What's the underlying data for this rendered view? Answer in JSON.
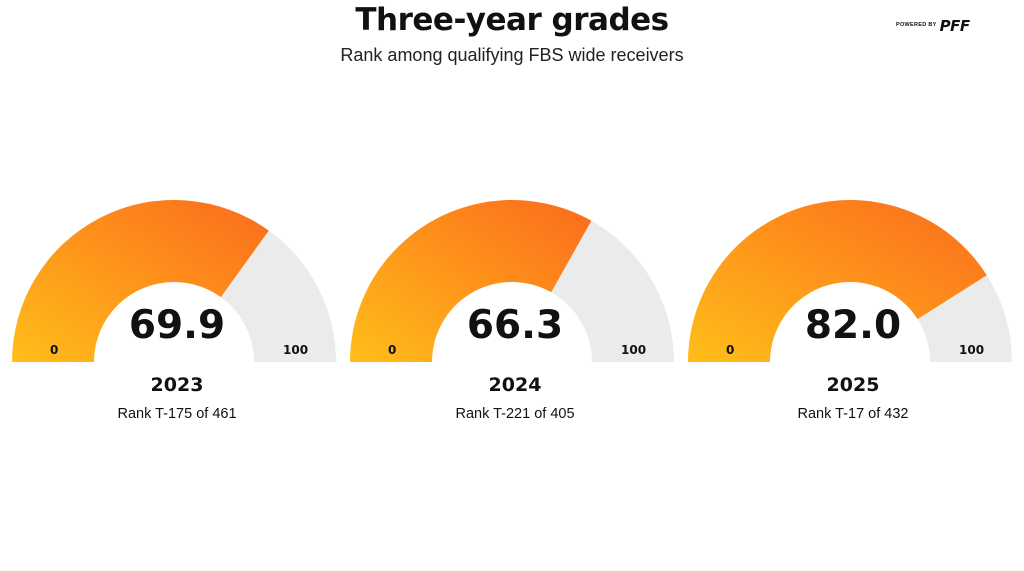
{
  "header": {
    "title": "Three-year grades",
    "subtitle": "Rank among qualifying FBS wide receivers"
  },
  "logo": {
    "small_text": "POWERED BY",
    "brand_text": "PFF"
  },
  "colors": {
    "gauge_start": "#FFBE1A",
    "gauge_end": "#FC6A1C",
    "gauge_track": "#EBEBEB",
    "text": "#111111"
  },
  "chart_data": [
    {
      "type": "gauge",
      "value": 69.9,
      "value_label": "69.9",
      "min": 0,
      "max": 100,
      "min_label": "0",
      "max_label": "100",
      "year": "2023",
      "rank": "Rank T-175 of 461"
    },
    {
      "type": "gauge",
      "value": 66.3,
      "value_label": "66.3",
      "min": 0,
      "max": 100,
      "min_label": "0",
      "max_label": "100",
      "year": "2024",
      "rank": "Rank T-221 of 405"
    },
    {
      "type": "gauge",
      "value": 82.0,
      "value_label": "82.0",
      "min": 0,
      "max": 100,
      "min_label": "0",
      "max_label": "100",
      "year": "2025",
      "rank": "Rank T-17 of 432"
    }
  ]
}
